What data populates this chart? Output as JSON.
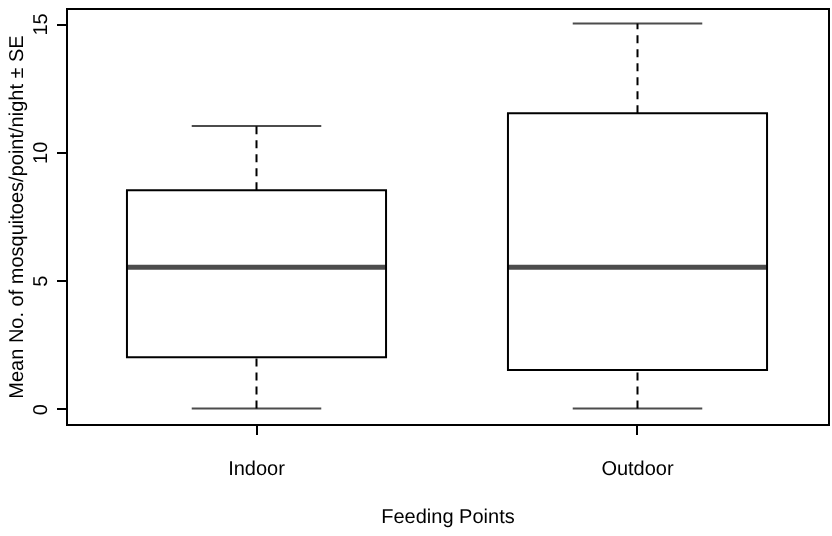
{
  "chart_data": {
    "type": "box",
    "xlabel": "Feeding Points",
    "ylabel": "Mean No. of mosquitoes/point/night ± SE",
    "categories": [
      "Indoor",
      "Outdoor"
    ],
    "boxes": [
      {
        "low": 0,
        "q1": 2,
        "median": 5.5,
        "q3": 8.5,
        "high": 11
      },
      {
        "low": 0,
        "q1": 1.5,
        "median": 5.5,
        "q3": 11.5,
        "high": 15
      }
    ],
    "ylim": [
      -0.6,
      15.6
    ],
    "yticks": [
      0,
      5,
      10,
      15
    ],
    "line_style": "dashed"
  }
}
